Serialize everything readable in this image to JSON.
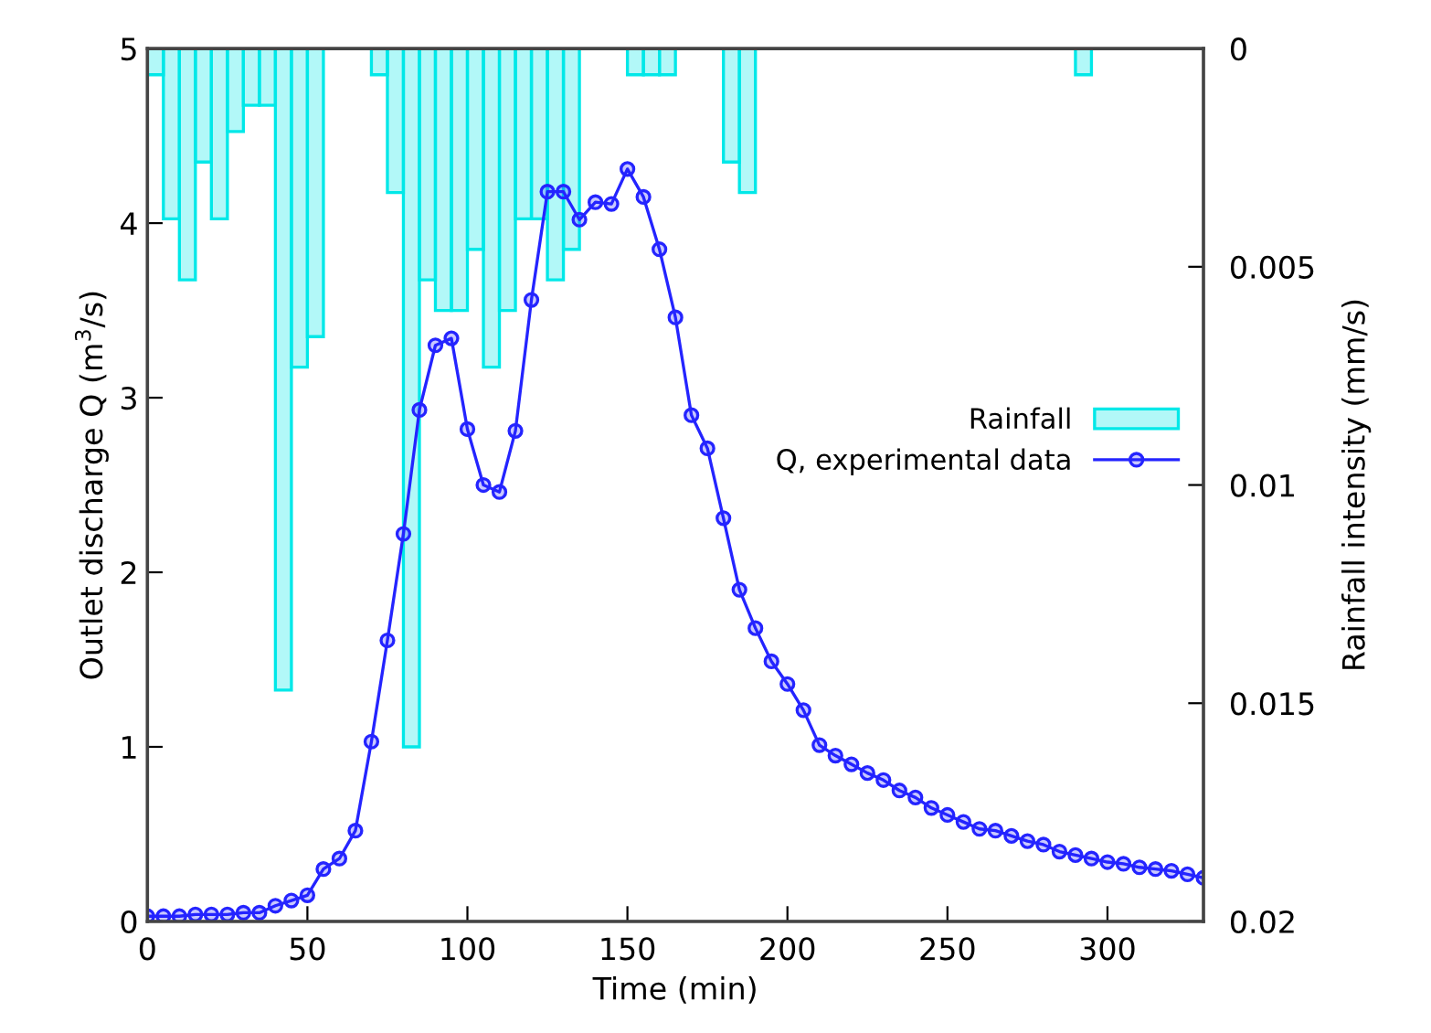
{
  "chart_data": {
    "type": "line",
    "xlabel": "Time (min)",
    "ylabel": "Outlet discharge Q (m$^{3}$/s)",
    "y2label": "Rainfall intensity (mm/s)",
    "xlim": [
      0,
      330
    ],
    "xticks": [
      0,
      50,
      100,
      150,
      200,
      250,
      300
    ],
    "ylim": [
      0,
      5
    ],
    "yticks": [
      0,
      1,
      2,
      3,
      4,
      5
    ],
    "y2lim": [
      0.02,
      0
    ],
    "y2ticks": [
      0,
      0.005,
      0.01,
      0.015,
      0.02
    ],
    "grid": false,
    "legend": "right",
    "series": [
      {
        "name": "Rainfall",
        "type": "bar",
        "axis": "y2",
        "color": "#00e8e8",
        "x": [
          2.5,
          7.5,
          12.5,
          17.5,
          22.5,
          27.5,
          32.5,
          37.5,
          42.5,
          47.5,
          52.5,
          72.5,
          77.5,
          82.5,
          87.5,
          92.5,
          97.5,
          102.5,
          107.5,
          112.5,
          117.5,
          122.5,
          127.5,
          132.5,
          152.5,
          157.5,
          162.5,
          182.5,
          187.5,
          292.5
        ],
        "values": [
          0.0006,
          0.0039,
          0.0053,
          0.0026,
          0.0039,
          0.0019,
          0.0013,
          0.0013,
          0.0147,
          0.0073,
          0.0066,
          0.0006,
          0.0033,
          0.016,
          0.0053,
          0.006,
          0.006,
          0.0046,
          0.0073,
          0.006,
          0.0039,
          0.0039,
          0.0053,
          0.0046,
          0.0006,
          0.0006,
          0.0006,
          0.0026,
          0.0033,
          0.0006
        ]
      },
      {
        "name": "Q, experimental data",
        "axis": "y",
        "color": "#2424ff",
        "marker": "circle",
        "line_style": "solid",
        "x": [
          0,
          5,
          10,
          15,
          20,
          25,
          30,
          35,
          40,
          45,
          50,
          55,
          60,
          65,
          70,
          75,
          80,
          85,
          90,
          95,
          100,
          105,
          110,
          115,
          120,
          125,
          130,
          135,
          140,
          145,
          150,
          155,
          160,
          165,
          170,
          175,
          180,
          185,
          190,
          195,
          200,
          205,
          210,
          215,
          220,
          225,
          230,
          235,
          240,
          245,
          250,
          255,
          260,
          265,
          270,
          275,
          280,
          285,
          290,
          295,
          300,
          305,
          310,
          315,
          320,
          325,
          330
        ],
        "values": [
          0.03,
          0.03,
          0.03,
          0.04,
          0.04,
          0.04,
          0.05,
          0.05,
          0.09,
          0.12,
          0.15,
          0.3,
          0.36,
          0.52,
          1.03,
          1.61,
          2.22,
          2.93,
          3.3,
          3.34,
          2.82,
          2.5,
          2.46,
          2.81,
          3.56,
          4.18,
          4.18,
          4.02,
          4.12,
          4.11,
          4.31,
          4.15,
          3.85,
          3.46,
          2.9,
          2.71,
          2.31,
          1.9,
          1.68,
          1.49,
          1.36,
          1.21,
          1.01,
          0.95,
          0.9,
          0.85,
          0.81,
          0.75,
          0.71,
          0.65,
          0.61,
          0.57,
          0.53,
          0.52,
          0.49,
          0.46,
          0.44,
          0.4,
          0.38,
          0.36,
          0.34,
          0.33,
          0.31,
          0.3,
          0.29,
          0.27,
          0.25
        ]
      }
    ]
  }
}
